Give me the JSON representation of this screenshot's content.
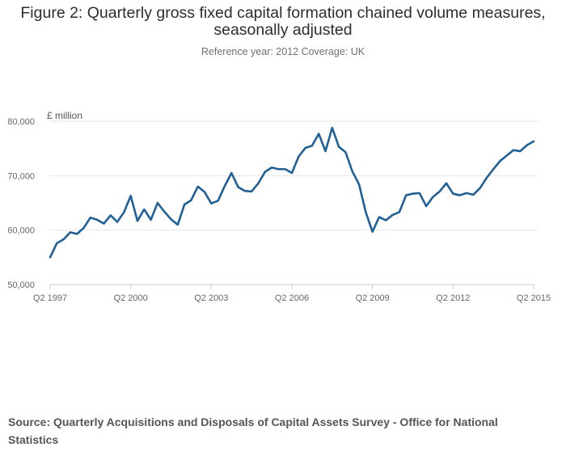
{
  "title": "Figure 2: Quarterly gross fixed capital formation chained volume measures, seasonally adjusted",
  "subtitle": "Reference year: 2012 Coverage: UK",
  "source": "Source: Quarterly Acquisitions and Disposals of Capital Assets Survey - Office for National Statistics",
  "colors": {
    "line": "#206095",
    "grid": "#e6e6e6",
    "axis": "#cccccc"
  },
  "chart_data": {
    "type": "line",
    "title": "Figure 2: Quarterly gross fixed capital formation chained volume measures, seasonally adjusted",
    "ylabel": "£ million",
    "xlabel": "",
    "ylim": [
      50000,
      80000
    ],
    "yticks": [
      50000,
      60000,
      70000,
      80000
    ],
    "ytick_labels": [
      "50,000",
      "60,000",
      "70,000",
      "80,000"
    ],
    "xtick_labels": [
      "Q2 1997",
      "Q2 2000",
      "Q2 2003",
      "Q2 2006",
      "Q2 2009",
      "Q2 2012",
      "Q2 2015"
    ],
    "xtick_index": [
      0,
      12,
      24,
      36,
      48,
      60,
      72
    ],
    "grid": true,
    "series": [
      {
        "name": "Gross fixed capital formation",
        "x_start": "Q2 1997",
        "values": [
          55000,
          57600,
          58300,
          59600,
          59300,
          60400,
          62300,
          61900,
          61200,
          62700,
          61500,
          63300,
          66300,
          61700,
          63800,
          61900,
          65000,
          63400,
          62000,
          61000,
          64700,
          65500,
          68000,
          67000,
          64900,
          65400,
          68100,
          70500,
          67900,
          67200,
          67100,
          68600,
          70700,
          71500,
          71200,
          71200,
          70500,
          73500,
          75100,
          75500,
          77700,
          74500,
          78800,
          75300,
          74300,
          70800,
          68400,
          63300,
          59700,
          62400,
          61800,
          62800,
          63300,
          66400,
          66700,
          66800,
          64400,
          66100,
          67100,
          68600,
          66700,
          66400,
          66800,
          66500,
          67700,
          69600,
          71200,
          72700,
          73700,
          74700,
          74500,
          75600,
          76300
        ]
      }
    ]
  }
}
